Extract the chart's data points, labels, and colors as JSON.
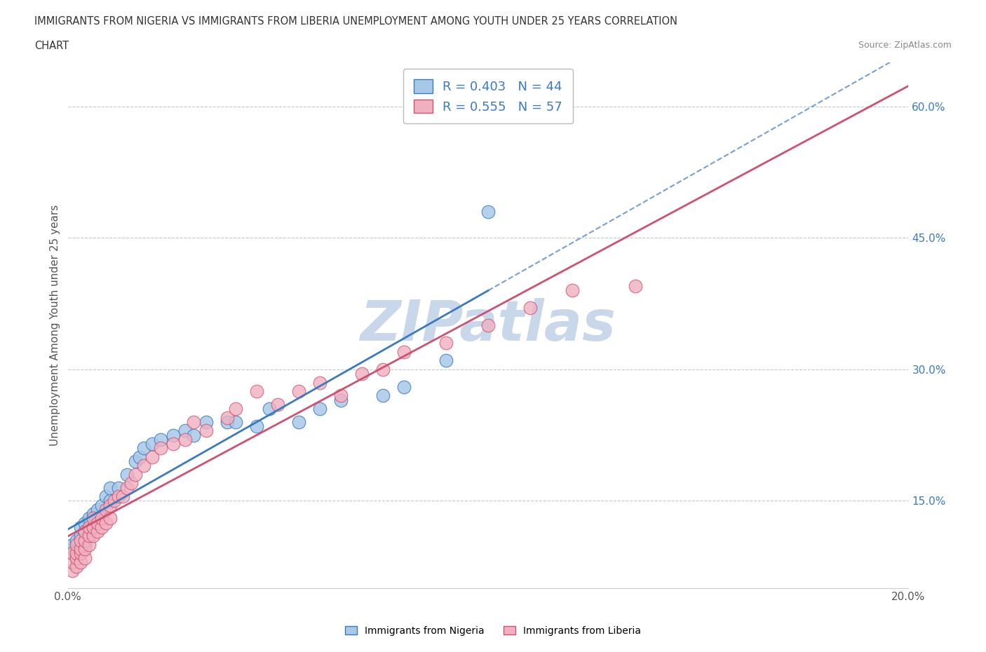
{
  "title_line1": "IMMIGRANTS FROM NIGERIA VS IMMIGRANTS FROM LIBERIA UNEMPLOYMENT AMONG YOUTH UNDER 25 YEARS CORRELATION",
  "title_line2": "CHART",
  "source_text": "Source: ZipAtlas.com",
  "ylabel": "Unemployment Among Youth under 25 years",
  "xlim": [
    0.0,
    0.2
  ],
  "ylim": [
    0.05,
    0.65
  ],
  "yticks": [
    0.15,
    0.3,
    0.45,
    0.6
  ],
  "ytick_labels": [
    "15.0%",
    "30.0%",
    "45.0%",
    "60.0%"
  ],
  "xticks": [
    0.0,
    0.04,
    0.08,
    0.12,
    0.16,
    0.2
  ],
  "xtick_labels": [
    "0.0%",
    "",
    "",
    "",
    "",
    "20.0%"
  ],
  "nigeria_color": "#a8c8e8",
  "nigeria_edge_color": "#3a7abf",
  "liberia_color": "#f0b0c0",
  "liberia_edge_color": "#d05070",
  "trendline_nigeria_color": "#3a7abf",
  "trendline_liberia_color": "#d05070",
  "R_nigeria": 0.403,
  "N_nigeria": 44,
  "R_liberia": 0.555,
  "N_liberia": 57,
  "nigeria_x": [
    0.001,
    0.001,
    0.002,
    0.002,
    0.002,
    0.003,
    0.003,
    0.003,
    0.003,
    0.004,
    0.004,
    0.004,
    0.005,
    0.005,
    0.005,
    0.006,
    0.006,
    0.007,
    0.008,
    0.009,
    0.01,
    0.01,
    0.012,
    0.014,
    0.016,
    0.017,
    0.018,
    0.02,
    0.022,
    0.025,
    0.028,
    0.03,
    0.033,
    0.038,
    0.04,
    0.045,
    0.048,
    0.055,
    0.06,
    0.065,
    0.075,
    0.08,
    0.09,
    0.1
  ],
  "nigeria_y": [
    0.095,
    0.1,
    0.085,
    0.095,
    0.105,
    0.09,
    0.1,
    0.11,
    0.12,
    0.1,
    0.115,
    0.125,
    0.11,
    0.12,
    0.13,
    0.12,
    0.135,
    0.14,
    0.145,
    0.155,
    0.15,
    0.165,
    0.165,
    0.18,
    0.195,
    0.2,
    0.21,
    0.215,
    0.22,
    0.225,
    0.23,
    0.225,
    0.24,
    0.24,
    0.24,
    0.235,
    0.255,
    0.24,
    0.255,
    0.265,
    0.27,
    0.28,
    0.31,
    0.48
  ],
  "liberia_x": [
    0.001,
    0.001,
    0.001,
    0.002,
    0.002,
    0.002,
    0.002,
    0.003,
    0.003,
    0.003,
    0.003,
    0.004,
    0.004,
    0.004,
    0.004,
    0.005,
    0.005,
    0.005,
    0.006,
    0.006,
    0.006,
    0.007,
    0.007,
    0.008,
    0.008,
    0.009,
    0.009,
    0.01,
    0.01,
    0.011,
    0.012,
    0.013,
    0.014,
    0.015,
    0.016,
    0.018,
    0.02,
    0.022,
    0.025,
    0.028,
    0.03,
    0.033,
    0.038,
    0.04,
    0.045,
    0.05,
    0.055,
    0.06,
    0.065,
    0.07,
    0.075,
    0.08,
    0.09,
    0.1,
    0.11,
    0.12,
    0.135
  ],
  "liberia_y": [
    0.07,
    0.08,
    0.09,
    0.075,
    0.085,
    0.09,
    0.1,
    0.08,
    0.09,
    0.095,
    0.105,
    0.085,
    0.095,
    0.105,
    0.115,
    0.1,
    0.11,
    0.12,
    0.11,
    0.12,
    0.13,
    0.115,
    0.125,
    0.12,
    0.13,
    0.125,
    0.14,
    0.13,
    0.145,
    0.15,
    0.155,
    0.155,
    0.165,
    0.17,
    0.18,
    0.19,
    0.2,
    0.21,
    0.215,
    0.22,
    0.24,
    0.23,
    0.245,
    0.255,
    0.275,
    0.26,
    0.275,
    0.285,
    0.27,
    0.295,
    0.3,
    0.32,
    0.33,
    0.35,
    0.37,
    0.39,
    0.395
  ],
  "watermark": "ZIPatlas",
  "watermark_color": "#c8d8ea",
  "background_color": "#ffffff",
  "grid_color": "#c0c8d0",
  "grid_style": "--"
}
